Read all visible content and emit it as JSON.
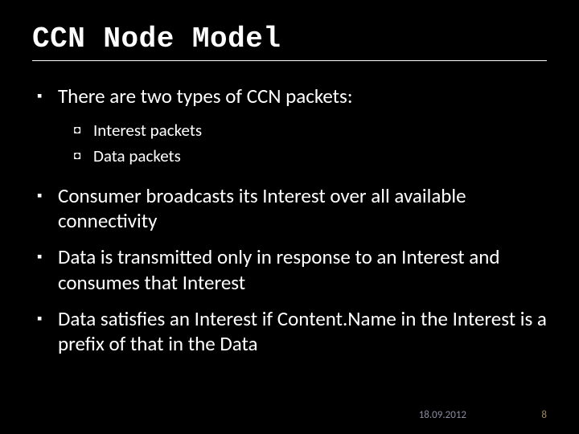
{
  "title": "CCN Node Model",
  "bullets": [
    {
      "text": "There are two types of CCN packets:"
    },
    {
      "text": "Consumer broadcasts its Interest over all available connectivity"
    },
    {
      "text": "Data is transmitted only in response to an Interest and consumes that Interest"
    },
    {
      "text": "Data satisfies an Interest if Content.Name in the Interest is a prefix of that in the Data"
    }
  ],
  "sub_bullets": [
    {
      "text": "Interest packets"
    },
    {
      "text": "Data packets"
    }
  ],
  "footer": {
    "date": "18.09.2012",
    "page": "8"
  },
  "markers": {
    "l1": "▪",
    "l2": "◘"
  },
  "colors": {
    "background": "#000000",
    "text": "#ffffff",
    "date": "#8a8ca0",
    "page": "#9a8a5a"
  }
}
